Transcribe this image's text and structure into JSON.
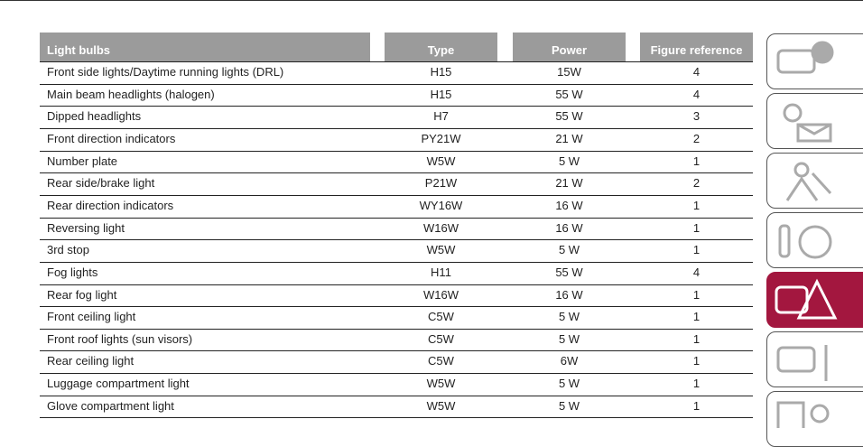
{
  "table": {
    "header": [
      "Light bulbs",
      "Type",
      "Power",
      "Figure reference"
    ],
    "rows": [
      [
        "Front side lights/Daytime running lights (DRL)",
        "H15",
        "15W",
        "4"
      ],
      [
        "Main beam headlights (halogen)",
        "H15",
        "55 W",
        "4"
      ],
      [
        "Dipped headlights",
        "H7",
        "55 W",
        "3"
      ],
      [
        "Front direction indicators",
        "PY21W",
        "21 W",
        "2"
      ],
      [
        "Number plate",
        "W5W",
        "5 W",
        "1"
      ],
      [
        "Rear side/brake light",
        "P21W",
        "21 W",
        "2"
      ],
      [
        "Rear direction indicators",
        "WY16W",
        "16 W",
        "1"
      ],
      [
        "Reversing light",
        "W16W",
        "16 W",
        "1"
      ],
      [
        "3rd stop",
        "W5W",
        "5 W",
        "1"
      ],
      [
        "Fog lights",
        "H11",
        "55 W",
        "4"
      ],
      [
        "Rear fog light",
        "W16W",
        "16 W",
        "1"
      ],
      [
        "Front ceiling light",
        "C5W",
        "5 W",
        "1"
      ],
      [
        "Front roof lights (sun visors)",
        "C5W",
        "5 W",
        "1"
      ],
      [
        "Rear ceiling light",
        "C5W",
        "6W",
        "1"
      ],
      [
        "Luggage compartment light",
        "W5W",
        "5 W",
        "1"
      ],
      [
        "Glove compartment light",
        "W5W",
        "5 W",
        "1"
      ]
    ]
  }
}
